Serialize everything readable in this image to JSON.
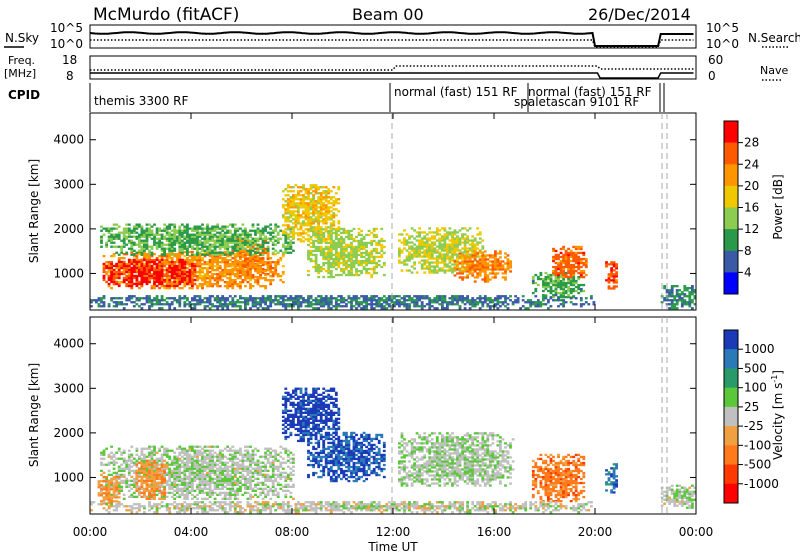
{
  "header": {
    "title": "McMurdo (fitACF)",
    "beam": "Beam 00",
    "date": "26/Dec/2014"
  },
  "top_panels": {
    "nsky_label": "N.Sky",
    "nsky_ticks": [
      "10^5",
      "10^0"
    ],
    "nsearch_label": "N.Search",
    "nsearch_ticks": [
      "10^5",
      "10^0"
    ],
    "freq_label_1": "Freq.",
    "freq_label_2": "[MHz]",
    "freq_ticks": [
      "18",
      "8"
    ],
    "nave_label": "Nave",
    "nave_ticks": [
      "60",
      "0"
    ],
    "cpid_label": "CPID",
    "cpid_entries": [
      {
        "text": "themis 3300 RF"
      },
      {
        "text": "normal (fast) 151 RF"
      },
      {
        "text": "normal (fast) 151 RF"
      },
      {
        "text": "spaletascan 9101 RF"
      }
    ]
  },
  "power_colorbar": {
    "label": "Power [dB]",
    "ticks": [
      "28",
      "24",
      "20",
      "16",
      "12",
      "8",
      "4"
    ],
    "colors": [
      "#ff0000",
      "#ff5a00",
      "#ff9600",
      "#f0c800",
      "#8ccc50",
      "#2a9a4a",
      "#3a5aa8",
      "#0000ff"
    ]
  },
  "velocity_colorbar": {
    "label_main": "Velocity  [m s",
    "label_sup": "-1",
    "label_end": "]",
    "ticks": [
      "1000",
      "500",
      "100",
      "25",
      "-25",
      "-100",
      "-500",
      "-1000"
    ],
    "colors": [
      "#1a3ab8",
      "#2a7ab8",
      "#2a9a6a",
      "#5ac83a",
      "#c0c0c0",
      "#f0a040",
      "#ff7a1a",
      "#ff3a00",
      "#ff0000"
    ]
  },
  "chart_data": {
    "type": "heatmap",
    "xlabel": "Time UT",
    "ylabel": "Slant Range [km]",
    "x_ticks": [
      "00:00",
      "04:00",
      "08:00",
      "12:00",
      "16:00",
      "20:00",
      "00:00"
    ],
    "xlim_hours": [
      0,
      24
    ],
    "ylim_km": [
      180,
      4600
    ],
    "y_ticks": [
      1000,
      2000,
      3000,
      4000
    ],
    "panels": [
      {
        "name": "Power",
        "scale": [
          0,
          30
        ],
        "blobs": [
          {
            "t0": 0.5,
            "t1": 7.6,
            "r0": 650,
            "r1": 1500,
            "v": 21
          },
          {
            "t0": 0.5,
            "t1": 4.2,
            "r0": 700,
            "r1": 1300,
            "v": 27
          },
          {
            "t0": 5.6,
            "t1": 7.0,
            "r0": 900,
            "r1": 1800,
            "v": 22
          },
          {
            "t0": 0.4,
            "t1": 8.0,
            "r0": 1400,
            "r1": 2100,
            "v": 11
          },
          {
            "t0": 7.6,
            "t1": 9.8,
            "r0": 1700,
            "r1": 3000,
            "v": 17
          },
          {
            "t0": 8.6,
            "t1": 11.6,
            "r0": 900,
            "r1": 2000,
            "v": 14
          },
          {
            "t0": 12.2,
            "t1": 15.5,
            "r0": 1000,
            "r1": 2000,
            "v": 15
          },
          {
            "t0": 14.4,
            "t1": 16.7,
            "r0": 800,
            "r1": 1500,
            "v": 22
          },
          {
            "t0": 17.5,
            "t1": 19.6,
            "r0": 450,
            "r1": 1000,
            "v": 10
          },
          {
            "t0": 18.3,
            "t1": 19.7,
            "r0": 900,
            "r1": 1600,
            "v": 24
          },
          {
            "t0": 20.4,
            "t1": 20.9,
            "r0": 600,
            "r1": 1300,
            "v": 25
          },
          {
            "t0": 22.6,
            "t1": 24.0,
            "r0": 200,
            "r1": 700,
            "v": 8
          },
          {
            "t0": 0.0,
            "t1": 20.0,
            "r0": 200,
            "r1": 500,
            "v": 7
          }
        ]
      },
      {
        "name": "Velocity",
        "scale": [
          -1000,
          1000
        ],
        "blobs": [
          {
            "t0": 0.4,
            "t1": 8.0,
            "r0": 500,
            "r1": 1700,
            "v": 60
          },
          {
            "t0": 1.8,
            "t1": 3.0,
            "r0": 500,
            "r1": 1400,
            "v": -300
          },
          {
            "t0": 0.3,
            "t1": 1.2,
            "r0": 400,
            "r1": 1000,
            "v": -300
          },
          {
            "t0": 7.6,
            "t1": 9.8,
            "r0": 1800,
            "r1": 3000,
            "v": 900
          },
          {
            "t0": 8.6,
            "t1": 11.6,
            "r0": 900,
            "r1": 2000,
            "v": 800
          },
          {
            "t0": 12.2,
            "t1": 16.7,
            "r0": 800,
            "r1": 2000,
            "v": 70
          },
          {
            "t0": 17.5,
            "t1": 19.6,
            "r0": 450,
            "r1": 1500,
            "v": -450
          },
          {
            "t0": 20.4,
            "t1": 20.9,
            "r0": 600,
            "r1": 1300,
            "v": 700
          },
          {
            "t0": 22.6,
            "t1": 24.0,
            "r0": 300,
            "r1": 800,
            "v": 60
          },
          {
            "t0": 0.0,
            "t1": 20.0,
            "r0": 200,
            "r1": 450,
            "v": 0
          }
        ]
      }
    ]
  }
}
